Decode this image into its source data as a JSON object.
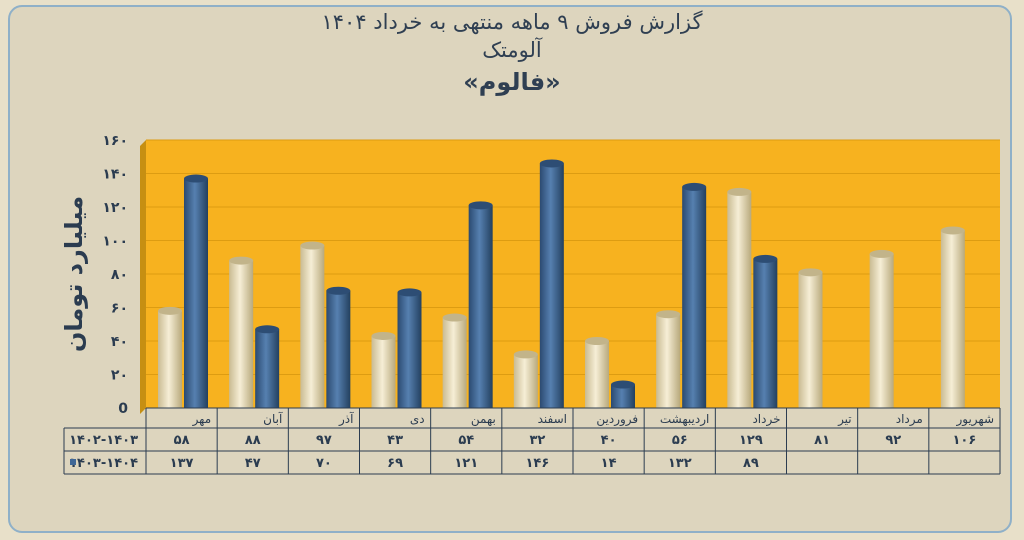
{
  "title_line1": "گزارش  فروش ۹ ماهه منتهی به خرداد ۱۴۰۴",
  "title_line2": "آلومتک",
  "title_line3": "«فالوم»",
  "colors": {
    "plot_bg": "#f7b21f",
    "series1": "#ede3c2",
    "series2": "#3f6796",
    "text": "#2b3c50"
  },
  "chart_data": {
    "type": "bar",
    "ylabel": "میلیارد تومان",
    "ylim": [
      0,
      160
    ],
    "yticks": [
      "0",
      "۲۰",
      "۴۰",
      "۶۰",
      "۸۰",
      "۱۰۰",
      "۱۲۰",
      "۱۴۰",
      "۱۶۰"
    ],
    "categories": [
      "مهر",
      "آبان",
      "آذر",
      "دی",
      "بهمن",
      "اسفند",
      "فروردین",
      "اردیبهشت",
      "خرداد",
      "تیر",
      "مرداد",
      "شهریور"
    ],
    "series": [
      {
        "name": "۱۴۰۲-۱۴۰۳",
        "values": [
          58,
          88,
          97,
          43,
          54,
          32,
          40,
          56,
          129,
          81,
          92,
          106
        ],
        "labels": [
          "۵۸",
          "۸۸",
          "۹۷",
          "۴۳",
          "۵۴",
          "۳۲",
          "۴۰",
          "۵۶",
          "۱۲۹",
          "۸۱",
          "۹۲",
          "۱۰۶"
        ]
      },
      {
        "name": "۱۴۰۳-۱۴۰۴",
        "values": [
          137,
          47,
          70,
          69,
          121,
          146,
          14,
          132,
          89,
          null,
          null,
          null
        ],
        "labels": [
          "۱۳۷",
          "۴۷",
          "۷۰",
          "۶۹",
          "۱۲۱",
          "۱۴۶",
          "۱۴",
          "۱۳۲",
          "۸۹",
          "",
          "",
          ""
        ]
      }
    ],
    "grid": true,
    "legend": "data-table"
  }
}
